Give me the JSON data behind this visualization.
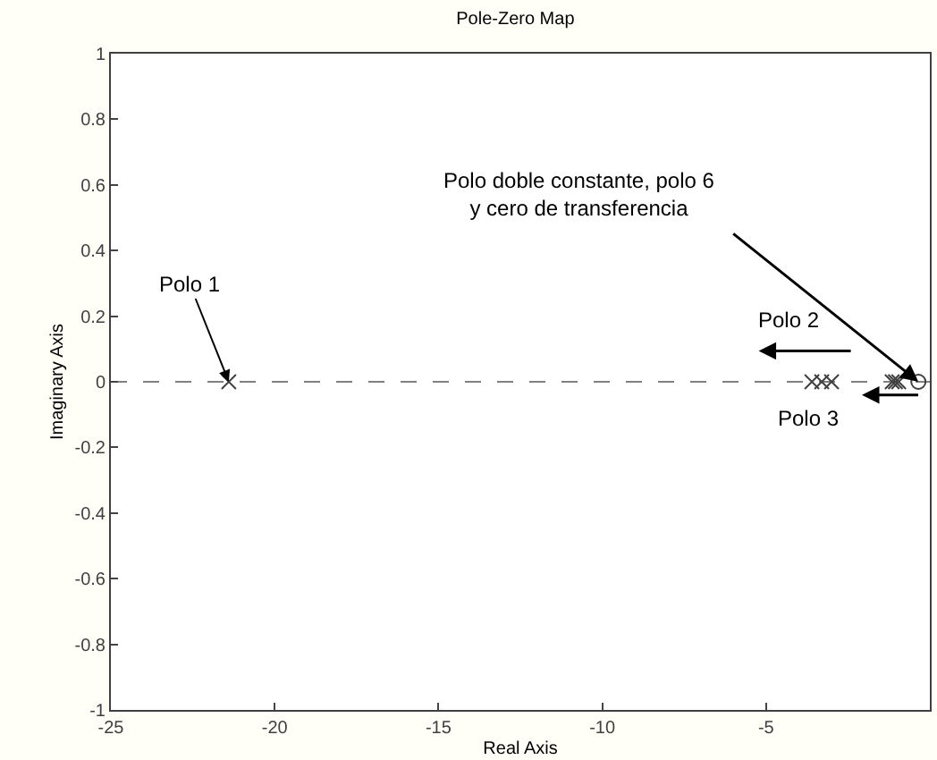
{
  "chart_data": {
    "type": "scatter",
    "title": "Pole-Zero Map",
    "xlabel": "Real Axis",
    "ylabel": "Imaginary Axis",
    "series": [
      {
        "marker": "cross",
        "color": "#404040",
        "x": [
          -21.4,
          -3.6,
          -3.3,
          -3.0,
          -1.15,
          -1.05,
          -0.95
        ],
        "values": [
          0,
          0,
          0,
          0,
          0,
          0,
          0
        ]
      },
      {
        "marker": "circle",
        "color": "#404040",
        "x": [
          -0.35
        ],
        "values": [
          0
        ]
      }
    ],
    "xlim": [
      -25,
      0
    ],
    "xticks": [
      -25,
      -20,
      -15,
      -10,
      -5
    ],
    "ylim": [
      -1,
      1
    ],
    "yticks": [
      -1,
      -0.8,
      -0.6,
      -0.4,
      -0.2,
      0,
      0.2,
      0.4,
      0.6,
      0.8,
      1
    ],
    "grid": false,
    "ref_lines": [
      {
        "axis": "y",
        "value": 0,
        "color": "#808080",
        "line_style": "dashed"
      }
    ],
    "annotations": [
      {
        "text": "Polo 1",
        "x": -21.4,
        "y": 0
      },
      "Polo 2",
      "Polo 3",
      {
        "text": "Polo doble constante, polo 6\ny cero de transferencia",
        "x": -0.35,
        "y": 0
      }
    ]
  }
}
